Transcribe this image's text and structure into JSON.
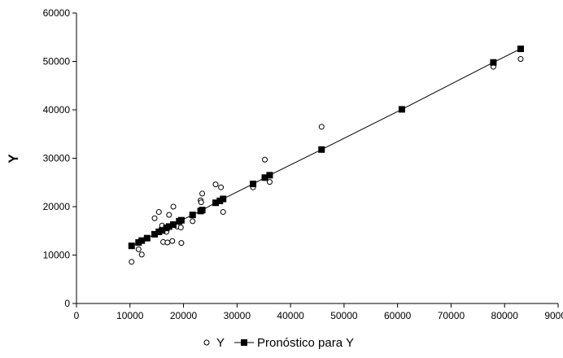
{
  "chart_data": {
    "type": "scatter",
    "ylabel": "Y",
    "xlim": [
      0,
      90000
    ],
    "ylim": [
      0,
      60000
    ],
    "x_ticks": [
      "0",
      "10000",
      "20000",
      "30000",
      "40000",
      "50000",
      "60000",
      "70000",
      "80000",
      "90000"
    ],
    "y_ticks": [
      "0",
      "10000",
      "20000",
      "30000",
      "40000",
      "50000",
      "60000"
    ],
    "grid": false,
    "legend_position": "bottom",
    "series": [
      {
        "name": "Y",
        "marker": "open-circle",
        "points": [
          [
            10300,
            8600
          ],
          [
            11600,
            11200
          ],
          [
            12200,
            10100
          ],
          [
            14600,
            17600
          ],
          [
            15400,
            18900
          ],
          [
            16000,
            16100
          ],
          [
            16200,
            12700
          ],
          [
            16800,
            14800
          ],
          [
            17000,
            12600
          ],
          [
            17300,
            18300
          ],
          [
            17900,
            12900
          ],
          [
            18100,
            20000
          ],
          [
            18800,
            15900
          ],
          [
            19500,
            15700
          ],
          [
            19600,
            12500
          ],
          [
            21700,
            17000
          ],
          [
            23200,
            21300
          ],
          [
            23300,
            20900
          ],
          [
            23500,
            22700
          ],
          [
            26000,
            24600
          ],
          [
            27000,
            24000
          ],
          [
            27400,
            18900
          ],
          [
            33000,
            24000
          ],
          [
            35200,
            29700
          ],
          [
            36100,
            25100
          ],
          [
            45800,
            36500
          ],
          [
            77900,
            48900
          ],
          [
            83000,
            50500
          ]
        ]
      },
      {
        "name": "Pronóstico para Y",
        "marker": "filled-square",
        "points": [
          [
            10300,
            11900
          ],
          [
            11600,
            12600
          ],
          [
            12200,
            13000
          ],
          [
            13200,
            13500
          ],
          [
            14600,
            14300
          ],
          [
            15400,
            14800
          ],
          [
            16000,
            15100
          ],
          [
            16800,
            15600
          ],
          [
            17300,
            15900
          ],
          [
            18100,
            16300
          ],
          [
            19200,
            17000
          ],
          [
            19600,
            17200
          ],
          [
            21700,
            18300
          ],
          [
            23200,
            19100
          ],
          [
            23500,
            19300
          ],
          [
            26000,
            20800
          ],
          [
            26800,
            21200
          ],
          [
            27400,
            21600
          ],
          [
            33000,
            24700
          ],
          [
            35200,
            26000
          ],
          [
            36100,
            26500
          ],
          [
            45800,
            31800
          ],
          [
            60800,
            40100
          ],
          [
            77900,
            49800
          ],
          [
            83000,
            52600
          ]
        ]
      }
    ]
  },
  "colors": {
    "axis": "#000000",
    "marker": "#000000",
    "background": "#ffffff"
  }
}
